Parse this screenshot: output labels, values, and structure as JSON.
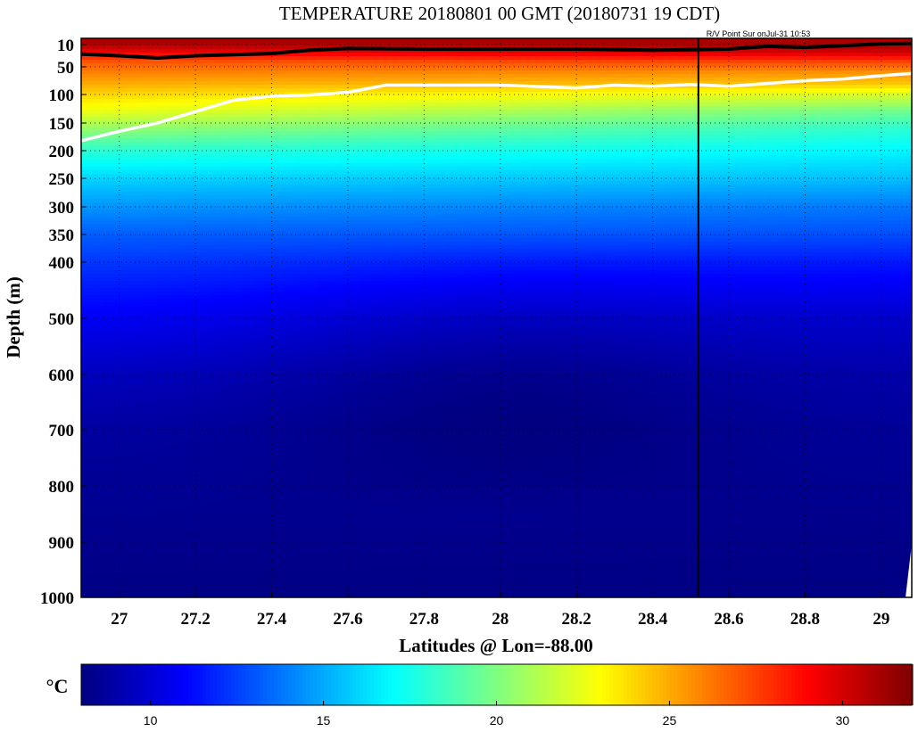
{
  "chart_data": {
    "type": "heatmap",
    "title": "TEMPERATURE 20180801 00 GMT (20180731 19 CDT)",
    "annotation": "R/V Point Sur onJul-31 10:53",
    "xlabel": "Latitudes @ Lon=-88.00",
    "ylabel": "Depth (m)",
    "xlim": [
      26.9,
      29.08
    ],
    "x_ticks": [
      27,
      27.2,
      27.4,
      27.6,
      27.8,
      28,
      28.2,
      28.4,
      28.6,
      28.8,
      29
    ],
    "x_tick_labels": [
      "27",
      "27.2",
      "27.4",
      "27.6",
      "27.8",
      "28",
      "28.2",
      "28.4",
      "28.6",
      "28.8",
      "29"
    ],
    "y_ticks": [
      10,
      50,
      100,
      150,
      200,
      250,
      300,
      350,
      400,
      500,
      600,
      700,
      800,
      900,
      1000
    ],
    "y_tick_labels": [
      "10",
      "50",
      "100",
      "150",
      "200",
      "250",
      "300",
      "350",
      "400",
      "500",
      "600",
      "700",
      "800",
      "900",
      "1000"
    ],
    "y_scale": "stretched (upper 400 m expanded)",
    "ylim": [
      0,
      1000
    ],
    "grid": true,
    "colorbar": {
      "label": "°C",
      "range": [
        8,
        32
      ],
      "ticks": [
        10,
        15,
        20,
        25,
        30
      ],
      "tick_labels": [
        "10",
        "15",
        "20",
        "25",
        "30"
      ],
      "colormap": "jet"
    },
    "vertical_marker_latitude": 28.52,
    "mixed_layer_depth_black": {
      "lat": [
        26.9,
        27.0,
        27.1,
        27.2,
        27.4,
        27.5,
        27.6,
        27.8,
        28.0,
        28.2,
        28.4,
        28.6,
        28.7,
        28.8,
        29.0,
        29.08
      ],
      "depth": [
        27,
        30,
        34,
        30,
        26,
        20,
        17,
        18,
        18,
        18,
        20,
        18,
        13,
        15,
        9,
        8
      ]
    },
    "isotherm_white": {
      "lat": [
        26.9,
        27.0,
        27.1,
        27.2,
        27.3,
        27.4,
        27.5,
        27.6,
        27.7,
        27.8,
        28.0,
        28.2,
        28.3,
        28.4,
        28.5,
        28.6,
        28.7,
        28.8,
        28.9,
        29.0,
        29.08
      ],
      "depth": [
        182,
        165,
        150,
        130,
        110,
        103,
        101,
        96,
        83,
        83,
        83,
        88,
        83,
        85,
        82,
        85,
        80,
        75,
        72,
        66,
        62
      ]
    },
    "temperature_profile": {
      "depth": [
        0,
        10,
        25,
        40,
        60,
        80,
        100,
        130,
        160,
        200,
        250,
        300,
        350,
        400,
        500,
        600,
        700,
        800,
        900,
        1000
      ],
      "temp_north": [
        31,
        31,
        30,
        27.5,
        25.5,
        24.3,
        22,
        19.5,
        18,
        16.8,
        15.5,
        13.8,
        12.8,
        11.5,
        9.8,
        9,
        8.6,
        8.4,
        8.2,
        8.1
      ],
      "temp_south": [
        31,
        31,
        29,
        27,
        26,
        25,
        24,
        22.5,
        20.5,
        18,
        16,
        14.5,
        13.2,
        12.3,
        10.8,
        9.5,
        8.8,
        8.5,
        8.3,
        8.1
      ]
    }
  }
}
